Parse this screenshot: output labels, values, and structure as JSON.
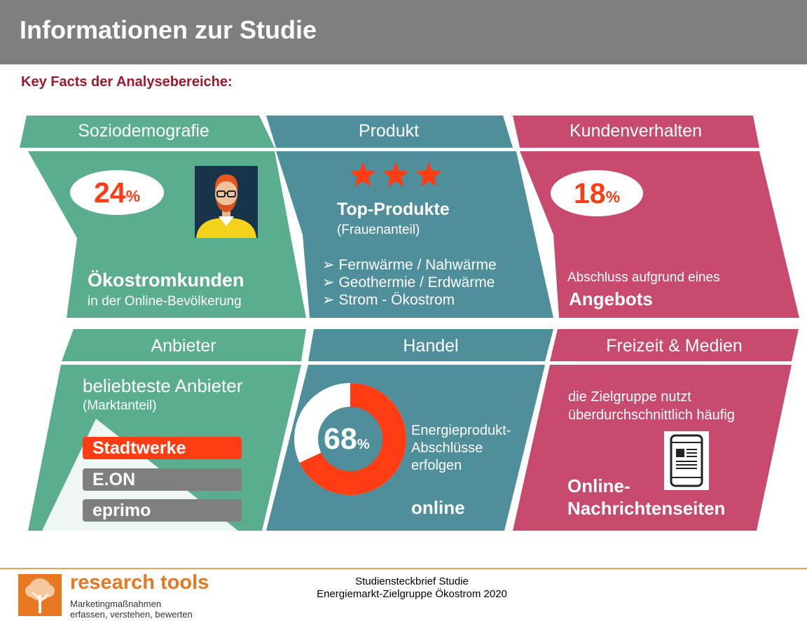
{
  "header": {
    "title": "Informationen zur Studie"
  },
  "subtitle": "Key Facts der Analysebereiche:",
  "colors": {
    "green": "#5aad8e",
    "teal": "#4e8f9b",
    "pink": "#c84a6e",
    "orange": "#ff3d14",
    "grey": "#7f7f7f",
    "darkred": "#a0192a"
  },
  "panels": {
    "soziodemografie": {
      "label": "Soziodemografie",
      "value": "24",
      "unit": "%",
      "headline": "Ökostromkunden",
      "caption": "in der Online-Bevölkerung",
      "icon": "person-avatar-icon"
    },
    "produkt": {
      "label": "Produkt",
      "rating": "3 stars",
      "headline": "Top-Produkte",
      "caption": "(Frauenanteil)",
      "items": [
        "Fernwärme / Nahwärme",
        "Geothermie / Erdwärme",
        "Strom - Ökostrom"
      ],
      "bullet": "➢"
    },
    "kundenverhalten": {
      "label": "Kundenverhalten",
      "value": "18",
      "unit": "%",
      "caption": "Abschluss aufgrund eines",
      "headline": "Angebots"
    },
    "anbieter": {
      "label": "Anbieter",
      "headline": "beliebteste Anbieter",
      "caption": "(Marktanteil)",
      "providers": [
        "Stadtwerke",
        "E.ON",
        "eprimo"
      ]
    },
    "handel": {
      "label": "Handel",
      "value": "68",
      "unit": "%",
      "share": 0.68,
      "caption_lines": [
        "Energieprodukt-",
        "Abschlüsse",
        "erfolgen"
      ],
      "headline": "online"
    },
    "freizeit": {
      "label": "Freizeit & Medien",
      "caption_lines": [
        "die Zielgruppe nutzt",
        "überdurchschnittlich häufig"
      ],
      "headline_lines": [
        "Online-",
        "Nachrichtenseiten"
      ],
      "icon": "tablet-news-icon"
    }
  },
  "footer": {
    "logo_name": "research tools",
    "logo_tag1": "Marketingmaßnahmen",
    "logo_tag2": "erfassen, verstehen, bewerten",
    "doc_line1": "Studiensteckbrief Studie",
    "doc_line2": "Energiemarkt-Zielgruppe Ökostrom 2020"
  }
}
